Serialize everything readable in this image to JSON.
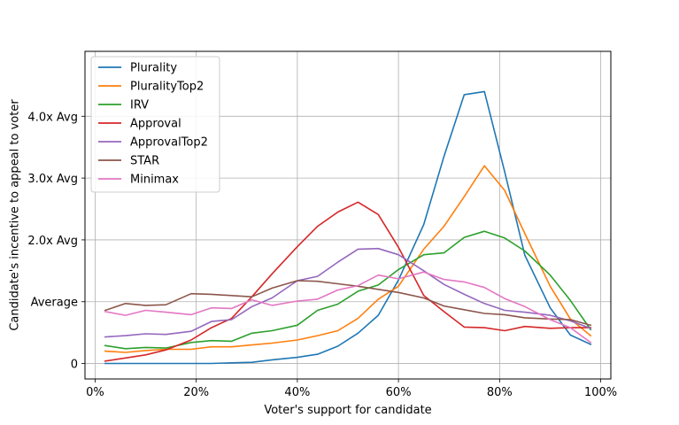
{
  "chart_data": {
    "type": "line",
    "title": "",
    "xlabel": "Voter's support for candidate",
    "ylabel": "Candidate's incentive to appeal to voter",
    "xlim": [
      -0.02,
      1.02
    ],
    "ylim": [
      -0.25,
      5.05
    ],
    "grid": true,
    "legend_position": "top-left",
    "x_ticks": [
      {
        "value": 0.0,
        "label": "0%"
      },
      {
        "value": 0.2,
        "label": "20%"
      },
      {
        "value": 0.4,
        "label": "40%"
      },
      {
        "value": 0.6,
        "label": "60%"
      },
      {
        "value": 0.8,
        "label": "80%"
      },
      {
        "value": 1.0,
        "label": "100%"
      }
    ],
    "y_ticks": [
      {
        "value": 0,
        "label": "0"
      },
      {
        "value": 1,
        "label": "Average"
      },
      {
        "value": 2,
        "label": "2.0x Avg"
      },
      {
        "value": 3,
        "label": "3.0x Avg"
      },
      {
        "value": 4,
        "label": "4.0x Avg"
      }
    ],
    "x": [
      0.02,
      0.06,
      0.1,
      0.14,
      0.19,
      0.23,
      0.27,
      0.31,
      0.35,
      0.4,
      0.44,
      0.48,
      0.52,
      0.56,
      0.6,
      0.65,
      0.69,
      0.73,
      0.77,
      0.81,
      0.85,
      0.9,
      0.94,
      0.98
    ],
    "series": [
      {
        "name": "Plurality",
        "color": "#1f77b4",
        "values": [
          0.0,
          0.0,
          0.0,
          0.0,
          0.0,
          0.0,
          0.01,
          0.02,
          0.06,
          0.1,
          0.15,
          0.28,
          0.49,
          0.78,
          1.35,
          2.25,
          3.35,
          4.35,
          4.4,
          3.1,
          1.75,
          0.9,
          0.46,
          0.31
        ]
      },
      {
        "name": "PluralityTop2",
        "color": "#ff7f0e",
        "values": [
          0.2,
          0.18,
          0.21,
          0.23,
          0.23,
          0.27,
          0.27,
          0.3,
          0.33,
          0.38,
          0.45,
          0.53,
          0.73,
          1.04,
          1.25,
          1.85,
          2.22,
          2.7,
          3.2,
          2.8,
          2.1,
          1.25,
          0.72,
          0.45
        ]
      },
      {
        "name": "IRV",
        "color": "#2ca02c",
        "values": [
          0.29,
          0.24,
          0.26,
          0.25,
          0.34,
          0.37,
          0.36,
          0.49,
          0.53,
          0.62,
          0.86,
          0.96,
          1.17,
          1.27,
          1.52,
          1.76,
          1.79,
          2.04,
          2.14,
          2.03,
          1.82,
          1.43,
          1.02,
          0.55
        ]
      },
      {
        "name": "Approval",
        "color": "#d62728",
        "values": [
          0.04,
          0.09,
          0.14,
          0.22,
          0.38,
          0.58,
          0.73,
          1.08,
          1.45,
          1.89,
          2.22,
          2.45,
          2.61,
          2.41,
          1.88,
          1.1,
          0.84,
          0.59,
          0.58,
          0.53,
          0.6,
          0.57,
          0.58,
          0.58
        ]
      },
      {
        "name": "ApprovalTop2",
        "color": "#9467bd",
        "values": [
          0.43,
          0.45,
          0.48,
          0.47,
          0.52,
          0.68,
          0.71,
          0.92,
          1.06,
          1.34,
          1.41,
          1.64,
          1.85,
          1.86,
          1.76,
          1.5,
          1.28,
          1.12,
          0.97,
          0.86,
          0.83,
          0.78,
          0.69,
          0.57
        ]
      },
      {
        "name": "STAR",
        "color": "#8c564b",
        "values": [
          0.86,
          0.97,
          0.94,
          0.95,
          1.13,
          1.12,
          1.1,
          1.08,
          1.22,
          1.34,
          1.33,
          1.29,
          1.25,
          1.2,
          1.15,
          1.06,
          0.93,
          0.87,
          0.81,
          0.79,
          0.74,
          0.72,
          0.71,
          0.62
        ]
      },
      {
        "name": "Minimax",
        "color": "#e377c2",
        "values": [
          0.84,
          0.78,
          0.86,
          0.83,
          0.79,
          0.9,
          0.89,
          1.03,
          0.94,
          1.01,
          1.04,
          1.19,
          1.26,
          1.43,
          1.37,
          1.48,
          1.36,
          1.32,
          1.23,
          1.05,
          0.92,
          0.71,
          0.58,
          0.34
        ]
      }
    ]
  }
}
